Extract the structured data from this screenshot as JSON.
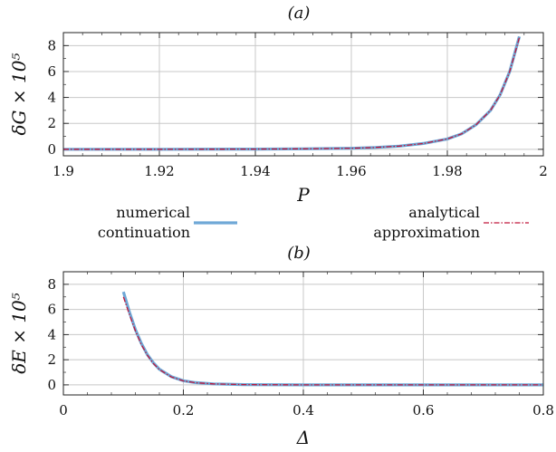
{
  "chart_data": [
    {
      "type": "line",
      "panel_label": "(a)",
      "xlabel": "P",
      "ylabel": "δG × 10⁵",
      "xlim": [
        1.9,
        2.0
      ],
      "ylim": [
        -0.5,
        9.0
      ],
      "xticks": [
        "1.9",
        "1.92",
        "1.94",
        "1.96",
        "1.98",
        "2"
      ],
      "yticks": [
        "0",
        "2",
        "4",
        "6",
        "8"
      ],
      "grid": true,
      "series": [
        {
          "name": "numerical continuation",
          "color": "#6fa8d6",
          "x": [
            1.9,
            1.92,
            1.94,
            1.95,
            1.96,
            1.965,
            1.97,
            1.975,
            1.98,
            1.983,
            1.986,
            1.989,
            1.991,
            1.993,
            1.995
          ],
          "y": [
            0.0,
            0.0,
            0.02,
            0.04,
            0.08,
            0.14,
            0.25,
            0.45,
            0.8,
            1.2,
            1.9,
            3.0,
            4.2,
            6.0,
            8.7
          ]
        },
        {
          "name": "analytical approximation",
          "color": "#c0163a",
          "x": [
            1.9,
            1.92,
            1.94,
            1.95,
            1.96,
            1.965,
            1.97,
            1.975,
            1.98,
            1.983,
            1.986,
            1.989,
            1.991,
            1.993,
            1.995
          ],
          "y": [
            0.0,
            0.0,
            0.02,
            0.04,
            0.08,
            0.14,
            0.25,
            0.45,
            0.8,
            1.2,
            1.9,
            3.0,
            4.2,
            6.0,
            8.6
          ]
        }
      ]
    },
    {
      "type": "line",
      "panel_label": "(b)",
      "xlabel": "Δ",
      "ylabel": "δE × 10⁵",
      "xlim": [
        0.0,
        0.8
      ],
      "ylim": [
        -0.8,
        9.0
      ],
      "xticks": [
        "0",
        "0.2",
        "0.4",
        "0.6",
        "0.8"
      ],
      "yticks": [
        "0",
        "2",
        "4",
        "6",
        "8"
      ],
      "grid": true,
      "series": [
        {
          "name": "numerical continuation",
          "color": "#6fa8d6",
          "x": [
            0.1,
            0.11,
            0.12,
            0.13,
            0.14,
            0.15,
            0.16,
            0.18,
            0.2,
            0.22,
            0.25,
            0.3,
            0.4,
            0.5,
            0.6,
            0.7,
            0.8
          ],
          "y": [
            7.4,
            5.8,
            4.4,
            3.3,
            2.4,
            1.75,
            1.25,
            0.65,
            0.33,
            0.18,
            0.08,
            0.02,
            0.0,
            0.0,
            0.0,
            0.0,
            0.0
          ]
        },
        {
          "name": "analytical approximation",
          "color": "#c0163a",
          "x": [
            0.1,
            0.11,
            0.12,
            0.13,
            0.14,
            0.15,
            0.16,
            0.18,
            0.2,
            0.22,
            0.25,
            0.3,
            0.4,
            0.5,
            0.6,
            0.7,
            0.8
          ],
          "y": [
            7.0,
            5.6,
            4.3,
            3.2,
            2.35,
            1.7,
            1.22,
            0.63,
            0.32,
            0.17,
            0.08,
            0.02,
            0.0,
            0.0,
            0.0,
            0.0,
            0.0
          ]
        }
      ]
    }
  ],
  "legend": {
    "placement": "between-panels",
    "items": [
      {
        "line1": "numerical",
        "line2": "continuation",
        "color": "#6fa8d6",
        "style": "solid"
      },
      {
        "line1": "analytical",
        "line2": "approximation",
        "color": "#c0163a",
        "style": "dash-dot"
      }
    ]
  }
}
